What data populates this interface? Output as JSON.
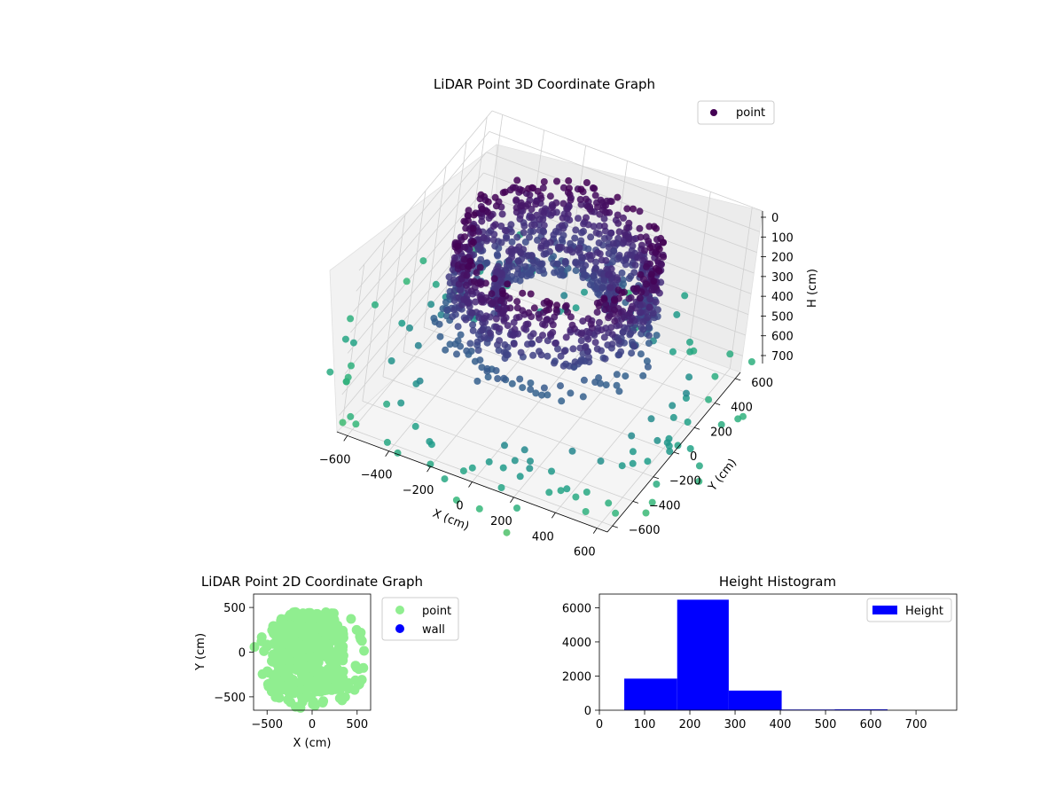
{
  "chart_data": [
    {
      "type": "scatter",
      "title": "LiDAR Point 3D Coordinate Graph",
      "xlabel": "X (cm)",
      "ylabel": "Y (cm)",
      "zlabel": "H (cm)",
      "xlim": [
        -650,
        650
      ],
      "ylim": [
        -650,
        650
      ],
      "zlim": [
        780,
        0
      ],
      "x_ticks": [
        "−600",
        "−400",
        "−200",
        "0",
        "200",
        "400",
        "600"
      ],
      "y_ticks": [
        "−600",
        "−400",
        "−200",
        "0",
        "200",
        "400",
        "600"
      ],
      "z_ticks": [
        "0",
        "100",
        "200",
        "300",
        "400",
        "500",
        "600",
        "700"
      ],
      "legend": {
        "entries": [
          "point"
        ],
        "placement": "top-right"
      },
      "colormap": "viridis",
      "series": [
        {
          "name": "point",
          "color": "#440154",
          "description_shape": "ring wall about r≈420 cm, height 0–400 cm, plus scattered floor points r≈450–900 cm at ≈700 cm"
        }
      ]
    },
    {
      "type": "scatter",
      "title": "LiDAR Point 2D Coordinate Graph",
      "xlabel": "X (cm)",
      "ylabel": "Y (cm)",
      "xlim": [
        -650,
        650
      ],
      "ylim": [
        -650,
        650
      ],
      "x_ticks": [
        "−500",
        "0",
        "500"
      ],
      "y_ticks": [
        "−500",
        "0",
        "500"
      ],
      "legend": {
        "entries": [
          "point",
          "wall"
        ],
        "placement": "outside right"
      },
      "series": [
        {
          "name": "point",
          "color": "#90ee90"
        },
        {
          "name": "wall",
          "color": "#0000ff"
        }
      ]
    },
    {
      "type": "bar",
      "title": "Height Histogram",
      "xlim": [
        0,
        790
      ],
      "ylim": [
        0,
        6800
      ],
      "x_ticks": [
        "0",
        "100",
        "200",
        "300",
        "400",
        "500",
        "600",
        "700"
      ],
      "y_ticks": [
        "0",
        "2000",
        "4000",
        "6000"
      ],
      "bin_edges": [
        55,
        172,
        286,
        403,
        520,
        637,
        754
      ],
      "values": [
        1850,
        6470,
        1150,
        40,
        50,
        0
      ],
      "legend": {
        "entries": [
          "Height"
        ],
        "placement": "top-right"
      },
      "series": [
        {
          "name": "Height",
          "color": "#0000ff"
        }
      ]
    }
  ]
}
